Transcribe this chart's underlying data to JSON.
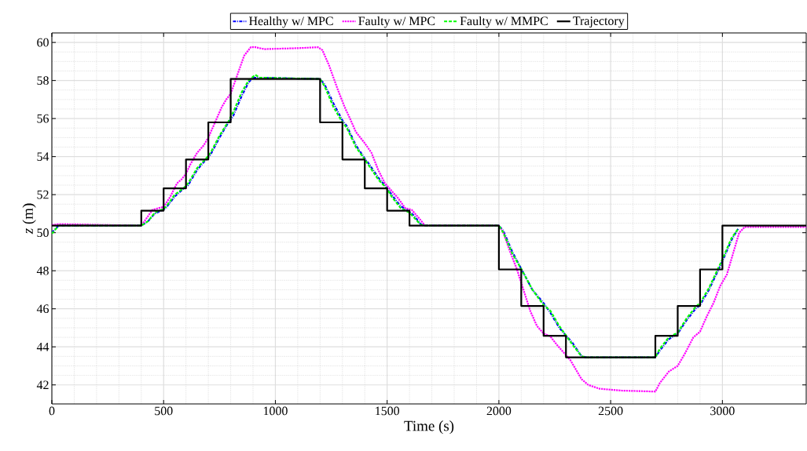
{
  "chart_data": {
    "type": "line",
    "xlabel": "Time (s)",
    "ylabel": "*z* (m)",
    "xlim": [
      0,
      3375
    ],
    "ylim": [
      41,
      60.5
    ],
    "xticks": [
      0,
      500,
      1000,
      1500,
      2000,
      2500,
      3000
    ],
    "yticks": [
      42,
      44,
      46,
      48,
      50,
      52,
      54,
      56,
      58,
      60
    ],
    "grid": true,
    "legend": "top",
    "marker": "none",
    "series": [
      {
        "name": "Healthy w/ MPC",
        "color": "#0000ff",
        "line_style": "dashdot",
        "x": [
          0,
          30,
          400,
          430,
          460,
          490,
          510,
          550,
          590,
          610,
          650,
          690,
          710,
          750,
          790,
          810,
          850,
          880,
          900,
          920,
          1200,
          1220,
          1260,
          1300,
          1320,
          1360,
          1400,
          1420,
          1460,
          1500,
          1520,
          1560,
          1600,
          1620,
          1650,
          1670,
          2000,
          2020,
          2060,
          2100,
          2150,
          2200,
          2230,
          2270,
          2300,
          2330,
          2370,
          2390,
          2700,
          2720,
          2760,
          2800,
          2840,
          2880,
          2900,
          2940,
          2980,
          3000,
          3040,
          3070
        ],
        "values": [
          50.0,
          50.37,
          50.37,
          50.6,
          51.0,
          51.16,
          51.3,
          51.9,
          52.33,
          52.5,
          53.3,
          53.85,
          54.1,
          55.0,
          55.8,
          56.1,
          57.2,
          57.9,
          58.15,
          58.15,
          58.08,
          57.8,
          56.8,
          55.9,
          55.6,
          54.6,
          53.9,
          53.6,
          52.9,
          52.35,
          52.0,
          51.4,
          51.1,
          50.9,
          50.45,
          50.37,
          50.37,
          50.1,
          49.0,
          48.1,
          47.0,
          46.3,
          45.8,
          45.0,
          44.6,
          44.2,
          43.5,
          43.45,
          43.45,
          43.8,
          44.4,
          44.7,
          45.4,
          46.0,
          46.2,
          47.0,
          48.0,
          48.5,
          49.6,
          50.2
        ]
      },
      {
        "name": "Faulty w/ MPC",
        "color": "#ff00ff",
        "line_style": "dotted",
        "x": [
          0,
          30,
          400,
          420,
          450,
          480,
          500,
          530,
          560,
          580,
          600,
          620,
          650,
          680,
          700,
          730,
          760,
          780,
          800,
          830,
          860,
          890,
          910,
          950,
          1100,
          1190,
          1210,
          1240,
          1280,
          1310,
          1330,
          1360,
          1400,
          1430,
          1460,
          1490,
          1520,
          1550,
          1580,
          1610,
          1640,
          1670,
          2000,
          2020,
          2050,
          2080,
          2110,
          2140,
          2170,
          2200,
          2230,
          2260,
          2290,
          2320,
          2340,
          2370,
          2400,
          2450,
          2550,
          2700,
          2720,
          2760,
          2800,
          2830,
          2870,
          2900,
          2930,
          2960,
          2990,
          3020,
          3050,
          3075,
          3100,
          3375
        ],
        "values": [
          50.4,
          50.45,
          50.37,
          50.7,
          51.2,
          51.3,
          51.35,
          51.9,
          52.6,
          52.8,
          53.1,
          53.6,
          54.2,
          54.6,
          55.0,
          55.8,
          56.6,
          57.0,
          57.3,
          58.3,
          59.3,
          59.75,
          59.75,
          59.65,
          59.7,
          59.75,
          59.6,
          58.8,
          57.5,
          56.6,
          56.1,
          55.3,
          54.7,
          54.2,
          53.3,
          52.6,
          52.2,
          51.8,
          51.3,
          51.2,
          50.8,
          50.37,
          50.37,
          50.0,
          49.0,
          48.1,
          47.0,
          45.9,
          45.1,
          44.7,
          44.55,
          44.1,
          43.7,
          43.3,
          42.9,
          42.3,
          42.0,
          41.8,
          41.7,
          41.65,
          42.1,
          42.7,
          43.0,
          43.6,
          44.5,
          44.8,
          45.6,
          46.3,
          47.2,
          47.8,
          49.0,
          50.0,
          50.3,
          50.3
        ]
      },
      {
        "name": "Faulty w/ MMPC",
        "color": "#00ff00",
        "line_style": "dashed",
        "x": [
          0,
          30,
          400,
          430,
          460,
          490,
          510,
          550,
          590,
          610,
          650,
          690,
          710,
          750,
          790,
          810,
          850,
          880,
          910,
          930,
          1200,
          1220,
          1260,
          1300,
          1320,
          1360,
          1400,
          1420,
          1460,
          1500,
          1520,
          1560,
          1600,
          1620,
          1650,
          1670,
          2000,
          2020,
          2060,
          2100,
          2150,
          2200,
          2230,
          2270,
          2300,
          2330,
          2370,
          2390,
          2700,
          2720,
          2760,
          2800,
          2840,
          2880,
          2900,
          2940,
          2980,
          3000,
          3040,
          3070
        ],
        "values": [
          49.95,
          50.37,
          50.37,
          50.6,
          51.05,
          51.2,
          51.35,
          52.0,
          52.35,
          52.6,
          53.4,
          53.9,
          54.2,
          55.1,
          55.85,
          56.3,
          57.4,
          58.0,
          58.3,
          58.15,
          58.08,
          57.7,
          56.6,
          55.8,
          55.5,
          54.5,
          53.85,
          53.5,
          52.8,
          52.3,
          51.9,
          51.3,
          51.05,
          50.8,
          50.42,
          50.37,
          50.37,
          50.0,
          48.9,
          48.1,
          47.0,
          46.2,
          45.9,
          45.1,
          44.6,
          44.1,
          43.5,
          43.45,
          43.45,
          43.9,
          44.5,
          44.75,
          45.5,
          46.1,
          46.3,
          47.1,
          48.1,
          48.6,
          49.7,
          50.2
        ]
      },
      {
        "name": "Trajectory",
        "color": "#000000",
        "line_style": "solid",
        "x": [
          0,
          400,
          400,
          500,
          500,
          600,
          600,
          700,
          700,
          800,
          800,
          1200,
          1200,
          1300,
          1300,
          1400,
          1400,
          1500,
          1500,
          1600,
          1600,
          2000,
          2000,
          2100,
          2100,
          2200,
          2200,
          2300,
          2300,
          2700,
          2700,
          2800,
          2800,
          2900,
          2900,
          3000,
          3000,
          3375
        ],
        "values": [
          50.37,
          50.37,
          51.16,
          51.16,
          52.33,
          52.33,
          53.85,
          53.85,
          55.8,
          55.8,
          58.08,
          58.08,
          55.8,
          55.8,
          53.85,
          53.85,
          52.33,
          52.33,
          51.16,
          51.16,
          50.37,
          50.37,
          48.07,
          48.07,
          46.15,
          46.15,
          44.58,
          44.58,
          43.45,
          43.45,
          44.58,
          44.58,
          46.15,
          46.15,
          48.07,
          48.07,
          50.37,
          50.37
        ]
      }
    ]
  }
}
